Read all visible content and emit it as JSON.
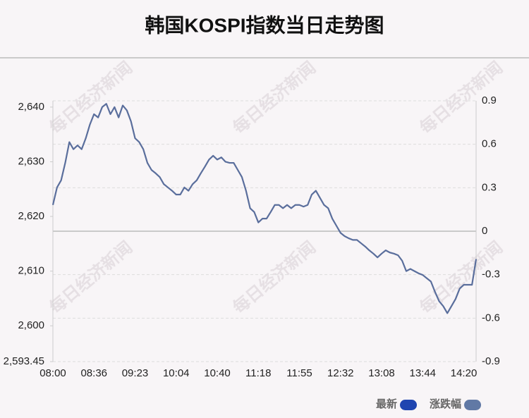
{
  "chart_data": {
    "type": "line",
    "title": "韩国KOSPI指数当日走势图",
    "watermark": "每日经济新闻",
    "categories": [
      "08:00",
      null,
      null,
      null,
      null,
      null,
      null,
      null,
      null,
      null,
      "08:36",
      null,
      null,
      null,
      null,
      null,
      null,
      null,
      null,
      null,
      "09:23",
      null,
      null,
      null,
      null,
      null,
      null,
      null,
      null,
      null,
      "10:04",
      null,
      null,
      null,
      null,
      null,
      null,
      null,
      null,
      null,
      "10:40",
      null,
      null,
      null,
      null,
      null,
      null,
      null,
      null,
      null,
      "11:18",
      null,
      null,
      null,
      null,
      null,
      null,
      null,
      null,
      null,
      "11:55",
      null,
      null,
      null,
      null,
      null,
      null,
      null,
      null,
      null,
      "12:32",
      null,
      null,
      null,
      null,
      null,
      null,
      null,
      null,
      null,
      "13:08",
      null,
      null,
      null,
      null,
      null,
      null,
      null,
      null,
      null,
      "13:44",
      null,
      null,
      null,
      null,
      null,
      null,
      null,
      null,
      null,
      "14:20",
      null,
      null,
      null
    ],
    "series": [
      {
        "name": "最新",
        "color": "#5a6e9c",
        "values": [
          2622.1,
          2625.3,
          2626.6,
          2629.8,
          2633.6,
          2632.3,
          2633.0,
          2632.3,
          2634.3,
          2636.8,
          2638.7,
          2638.1,
          2640.0,
          2640.6,
          2638.7,
          2640.0,
          2638.1,
          2640.3,
          2639.4,
          2637.4,
          2634.3,
          2633.6,
          2632.3,
          2629.8,
          2628.5,
          2627.9,
          2627.2,
          2625.9,
          2625.3,
          2624.7,
          2624.0,
          2624.0,
          2625.3,
          2624.7,
          2625.9,
          2626.6,
          2627.9,
          2629.1,
          2630.4,
          2631.1,
          2630.4,
          2630.8,
          2630.0,
          2629.8,
          2629.8,
          2628.5,
          2627.2,
          2624.7,
          2621.5,
          2620.8,
          2618.9,
          2619.6,
          2619.6,
          2620.8,
          2622.1,
          2622.1,
          2621.5,
          2622.1,
          2621.5,
          2622.1,
          2622.1,
          2621.8,
          2622.1,
          2624.0,
          2624.7,
          2623.4,
          2622.1,
          2621.5,
          2619.6,
          2618.3,
          2617.0,
          2616.4,
          2616.0,
          2615.7,
          2615.7,
          2615.1,
          2614.5,
          2613.8,
          2613.2,
          2612.5,
          2613.2,
          2613.8,
          2613.4,
          2613.2,
          2612.9,
          2611.9,
          2610.0,
          2610.4,
          2610.0,
          2609.6,
          2609.3,
          2608.7,
          2608.1,
          2606.2,
          2604.5,
          2603.6,
          2602.3,
          2603.6,
          2604.9,
          2606.8,
          2607.5,
          2607.5,
          2607.5,
          2612.2
        ]
      }
    ],
    "legend": [
      {
        "name": "最新",
        "color": "#1f45b0"
      },
      {
        "name": "涨跌幅",
        "color": "#6179a5"
      }
    ],
    "ylim": [
      2593.45,
      2641.15
    ],
    "yticks": [
      {
        "value": 2593.45,
        "label": "2,593.45"
      },
      {
        "value": 2600,
        "label": "2,600"
      },
      {
        "value": 2610,
        "label": "2,610"
      },
      {
        "value": 2620,
        "label": "2,620"
      },
      {
        "value": 2630,
        "label": "2,630"
      },
      {
        "value": 2640,
        "label": "2,640"
      }
    ],
    "y2lim": [
      -0.9,
      0.9
    ],
    "y2ticks": [
      -0.9,
      -0.6,
      -0.3,
      0,
      0.3,
      0.6,
      0.9
    ],
    "grid": true
  }
}
